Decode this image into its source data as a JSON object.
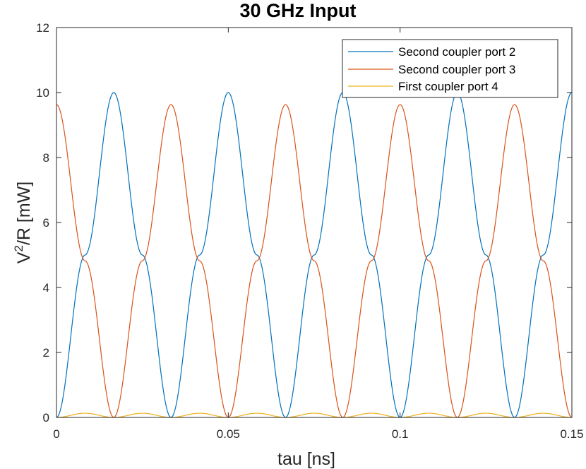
{
  "chart_data": {
    "type": "line",
    "title": "30 GHz Input",
    "xlabel": "tau [ns]",
    "ylabel_base": "V",
    "ylabel_sup": "2",
    "ylabel_rest": "/R [mW]",
    "xlim": [
      0,
      0.15
    ],
    "ylim": [
      0,
      12
    ],
    "xticks": [
      0,
      0.05,
      0.1,
      0.15
    ],
    "xtick_labels": [
      "0",
      "0.05",
      "0.1",
      "0.15"
    ],
    "yticks": [
      0,
      2,
      4,
      6,
      8,
      10,
      12
    ],
    "ytick_labels": [
      "0",
      "2",
      "4",
      "6",
      "8",
      "10",
      "12"
    ],
    "grid": false,
    "legend_position": "top-right",
    "x": [
      0,
      0.00833,
      0.01667,
      0.025,
      0.03333,
      0.04167,
      0.05,
      0.05833,
      0.06667,
      0.075,
      0.08333,
      0.09167,
      0.1,
      0.10833,
      0.11667,
      0.125,
      0.13333,
      0.14167,
      0.15
    ],
    "series": [
      {
        "name": "Second coupler port 2",
        "color": "#0072BD",
        "values": [
          0,
          5,
          10,
          5,
          0,
          5,
          10,
          5,
          0,
          5,
          10,
          5,
          0,
          5,
          10,
          5,
          0,
          5,
          10
        ]
      },
      {
        "name": "Second coupler port 3",
        "color": "#D95319",
        "values": [
          9.63,
          4.82,
          0,
          4.82,
          9.63,
          4.82,
          0,
          4.82,
          9.63,
          4.82,
          0,
          4.82,
          9.63,
          4.82,
          0,
          4.82,
          9.63,
          4.82,
          0
        ]
      },
      {
        "name": "First coupler port 4",
        "color": "#EDB120",
        "values": [
          0,
          0.13,
          0,
          0.13,
          0,
          0.13,
          0,
          0.13,
          0,
          0.13,
          0,
          0.13,
          0,
          0.13,
          0,
          0.13,
          0,
          0.13,
          0
        ]
      }
    ]
  }
}
